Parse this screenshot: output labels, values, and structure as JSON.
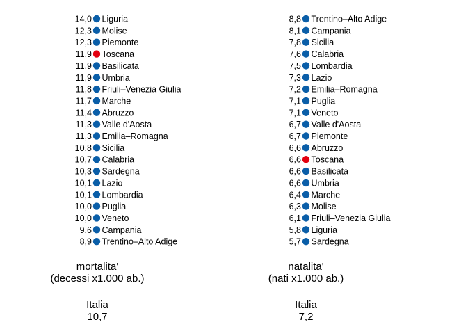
{
  "chart_data": [
    {
      "type": "dot-ranking",
      "title": "mortalita'",
      "subtitle": "(decessi x1.000 ab.)",
      "total_label": "Italia",
      "total_value": "10,7",
      "highlight_color": "#e3000f",
      "dot_color": "#0a5ea8",
      "items": [
        {
          "region": "Liguria",
          "value": "14,0"
        },
        {
          "region": "Molise",
          "value": "12,3"
        },
        {
          "region": "Piemonte",
          "value": "12,3"
        },
        {
          "region": "Toscana",
          "value": "11,9",
          "highlight": true
        },
        {
          "region": "Basilicata",
          "value": "11,9"
        },
        {
          "region": "Umbria",
          "value": "11,9"
        },
        {
          "region": "Friuli–Venezia Giulia",
          "value": "11,8"
        },
        {
          "region": "Marche",
          "value": "11,7"
        },
        {
          "region": "Abruzzo",
          "value": "11,4"
        },
        {
          "region": "Valle d'Aosta",
          "value": "11,3"
        },
        {
          "region": "Emilia–Romagna",
          "value": "11,3"
        },
        {
          "region": "Sicilia",
          "value": "10,8"
        },
        {
          "region": "Calabria",
          "value": "10,7"
        },
        {
          "region": "Sardegna",
          "value": "10,3"
        },
        {
          "region": "Lazio",
          "value": "10,1"
        },
        {
          "region": "Lombardia",
          "value": "10,1"
        },
        {
          "region": "Puglia",
          "value": "10,0"
        },
        {
          "region": "Veneto",
          "value": "10,0"
        },
        {
          "region": "Campania",
          "value": "9,6"
        },
        {
          "region": "Trentino–Alto Adige",
          "value": "8,9"
        }
      ]
    },
    {
      "type": "dot-ranking",
      "title": "natalita'",
      "subtitle": "(nati x1.000 ab.)",
      "total_label": "Italia",
      "total_value": "7,2",
      "highlight_color": "#e3000f",
      "dot_color": "#0a5ea8",
      "items": [
        {
          "region": "Trentino–Alto Adige",
          "value": "8,8"
        },
        {
          "region": "Campania",
          "value": "8,1"
        },
        {
          "region": "Sicilia",
          "value": "7,8"
        },
        {
          "region": "Calabria",
          "value": "7,6"
        },
        {
          "region": "Lombardia",
          "value": "7,5"
        },
        {
          "region": "Lazio",
          "value": "7,3"
        },
        {
          "region": "Emilia–Romagna",
          "value": "7,2"
        },
        {
          "region": "Puglia",
          "value": "7,1"
        },
        {
          "region": "Veneto",
          "value": "7,1"
        },
        {
          "region": "Valle d'Aosta",
          "value": "6,7"
        },
        {
          "region": "Piemonte",
          "value": "6,7"
        },
        {
          "region": "Abruzzo",
          "value": "6,6"
        },
        {
          "region": "Toscana",
          "value": "6,6",
          "highlight": true
        },
        {
          "region": "Basilicata",
          "value": "6,6"
        },
        {
          "region": "Umbria",
          "value": "6,6"
        },
        {
          "region": "Marche",
          "value": "6,4"
        },
        {
          "region": "Molise",
          "value": "6,3"
        },
        {
          "region": "Friuli–Venezia Giulia",
          "value": "6,1"
        },
        {
          "region": "Liguria",
          "value": "5,8"
        },
        {
          "region": "Sardegna",
          "value": "5,7"
        }
      ]
    }
  ]
}
